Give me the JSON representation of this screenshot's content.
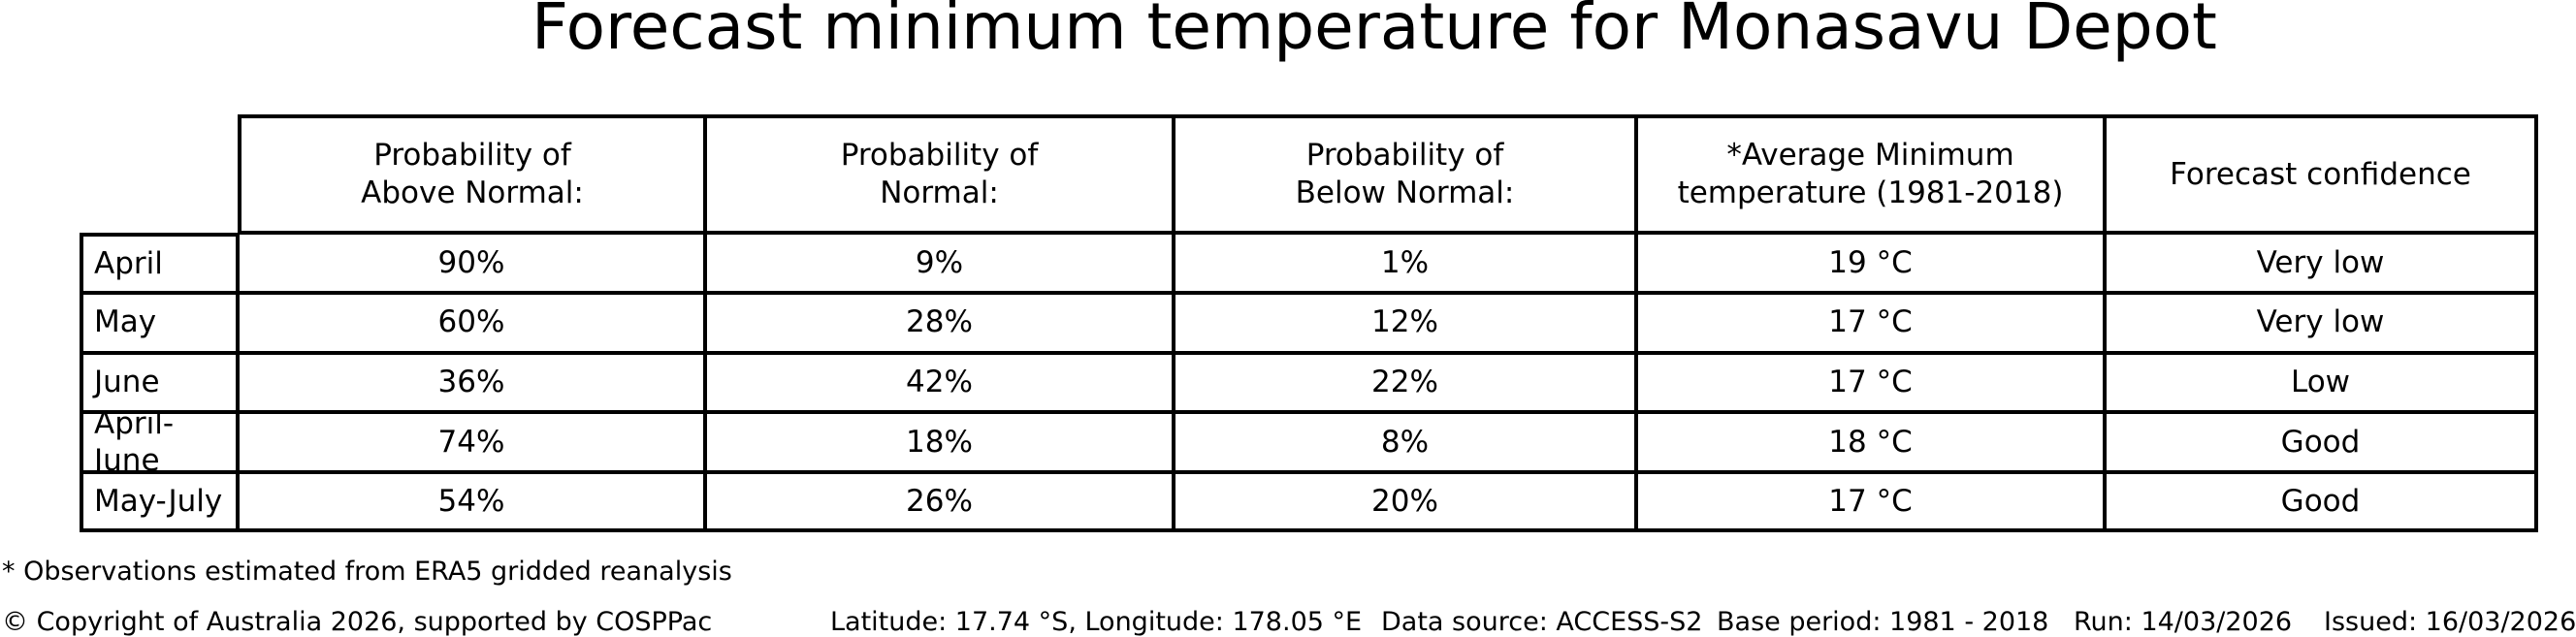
{
  "chart_data": {
    "type": "table",
    "title": "Forecast minimum temperature for Monasavu Depot",
    "columns": [
      "Probability of\nAbove Normal:",
      "Probability of\nNormal:",
      "Probability of\nBelow Normal:",
      "*Average Minimum\ntemperature (1981-2018)",
      "Forecast confidence"
    ],
    "rows": [
      [
        "April",
        "90%",
        "9%",
        "1%",
        "19 °C",
        "Very low"
      ],
      [
        "May",
        "60%",
        "28%",
        "12%",
        "17 °C",
        "Very low"
      ],
      [
        "June",
        "36%",
        "42%",
        "22%",
        "17 °C",
        "Low"
      ],
      [
        "April-June",
        "74%",
        "18%",
        "8%",
        "18 °C",
        "Good"
      ],
      [
        "May-July",
        "54%",
        "26%",
        "20%",
        "17 °C",
        "Good"
      ]
    ]
  },
  "footnote": "* Observations estimated from ERA5 gridded reanalysis",
  "footer": {
    "copyright": "© Copyright of Australia 2026, supported by COSPPac",
    "location": "Latitude: 17.74 °S, Longitude: 178.05 °E",
    "data_source": "Data source: ACCESS-S2",
    "base_period": "Base period: 1981 - 2018",
    "run": "Run: 14/03/2026",
    "issued": "Issued: 16/03/2026"
  }
}
